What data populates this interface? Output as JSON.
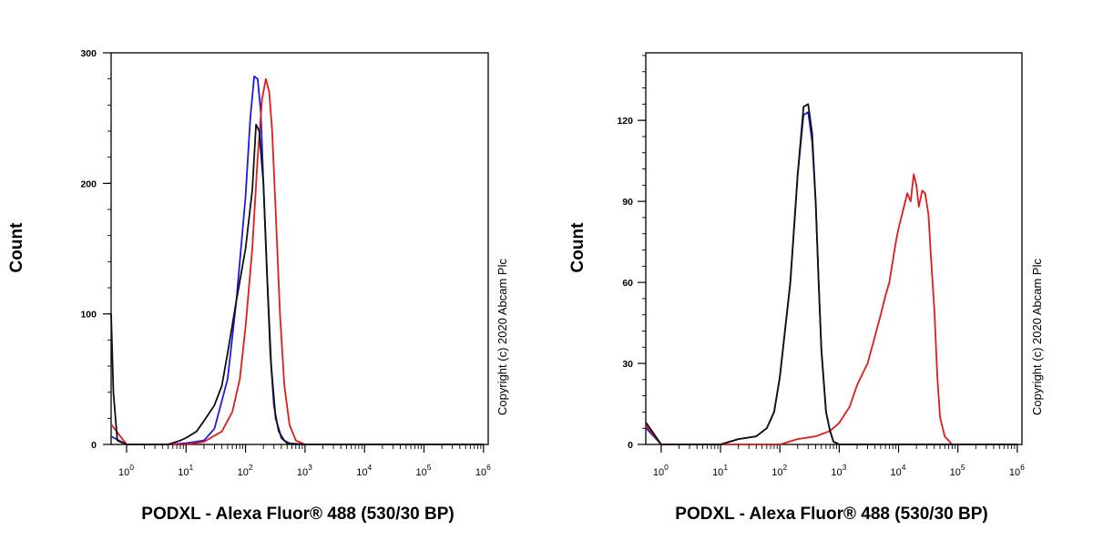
{
  "chart_data": [
    {
      "type": "line",
      "xlabel": "PODXL - Alexa Fluor® 488 (530/30 BP)",
      "ylabel": "Count",
      "x_scale": "log",
      "xlim": [
        0.55,
        1200000
      ],
      "ylim": [
        0,
        300
      ],
      "x_ticks": [
        {
          "value": 1,
          "base": "10",
          "exp": "0"
        },
        {
          "value": 10,
          "base": "10",
          "exp": "1"
        },
        {
          "value": 100,
          "base": "10",
          "exp": "2"
        },
        {
          "value": 1000,
          "base": "10",
          "exp": "3"
        },
        {
          "value": 10000,
          "base": "10",
          "exp": "4"
        },
        {
          "value": 100000,
          "base": "10",
          "exp": "5"
        },
        {
          "value": 1000000,
          "base": "10",
          "exp": "6"
        }
      ],
      "y_ticks": [
        0,
        100,
        200,
        300
      ],
      "y_minor_step": 20,
      "copyright": "Copyright (c) 2020 Abcam Plc",
      "series": [
        {
          "color": "#1a1ae6",
          "x": [
            0.56,
            1,
            5,
            10,
            20,
            30,
            50,
            70,
            100,
            120,
            140,
            160,
            180,
            200,
            230,
            260,
            300,
            360,
            450,
            600,
            1000,
            1000000
          ],
          "y": [
            6,
            0,
            0,
            1,
            3,
            12,
            50,
            110,
            190,
            250,
            282,
            280,
            255,
            200,
            130,
            70,
            30,
            10,
            3,
            0,
            0,
            0
          ]
        },
        {
          "color": "#e61a1a",
          "x": [
            0.56,
            1,
            5,
            10,
            20,
            40,
            60,
            80,
            100,
            130,
            160,
            190,
            220,
            250,
            280,
            320,
            380,
            450,
            550,
            700,
            1000,
            1000000
          ],
          "y": [
            15,
            0,
            0,
            0,
            2,
            10,
            25,
            50,
            90,
            150,
            220,
            265,
            280,
            270,
            240,
            180,
            100,
            45,
            15,
            3,
            0,
            0
          ]
        },
        {
          "color": "#111111",
          "x": [
            0.55,
            0.6,
            0.7,
            1,
            5,
            8,
            10,
            15,
            20,
            30,
            40,
            50,
            70,
            100,
            130,
            150,
            170,
            200,
            230,
            270,
            320,
            400,
            500,
            1000,
            1000000
          ],
          "y": [
            100,
            40,
            3,
            0,
            0,
            3,
            5,
            10,
            18,
            30,
            45,
            70,
            110,
            150,
            195,
            245,
            240,
            200,
            130,
            60,
            20,
            5,
            1,
            0,
            0
          ]
        }
      ]
    },
    {
      "type": "line",
      "xlabel": "PODXL - Alexa Fluor® 488 (530/30 BP)",
      "ylabel": "Count",
      "x_scale": "log",
      "xlim": [
        0.55,
        1200000
      ],
      "ylim": [
        0,
        145
      ],
      "x_ticks": [
        {
          "value": 1,
          "base": "10",
          "exp": "0"
        },
        {
          "value": 10,
          "base": "10",
          "exp": "1"
        },
        {
          "value": 100,
          "base": "10",
          "exp": "2"
        },
        {
          "value": 1000,
          "base": "10",
          "exp": "3"
        },
        {
          "value": 10000,
          "base": "10",
          "exp": "4"
        },
        {
          "value": 100000,
          "base": "10",
          "exp": "5"
        },
        {
          "value": 1000000,
          "base": "10",
          "exp": "6"
        }
      ],
      "y_ticks": [
        0,
        30,
        60,
        90,
        120
      ],
      "y_minor_step": 6,
      "copyright": "Copyright (c) 2020 Abcam Plc",
      "series": [
        {
          "color": "#1a1ae6",
          "x": [
            0.56,
            1,
            5,
            10,
            20,
            40,
            60,
            80,
            100,
            150,
            200,
            250,
            300,
            350,
            400,
            450,
            500,
            600,
            700,
            800,
            1000,
            1000000
          ],
          "y": [
            6,
            0,
            0,
            0,
            2,
            3,
            6,
            12,
            25,
            60,
            100,
            122,
            123,
            112,
            90,
            60,
            35,
            12,
            5,
            1,
            0,
            0
          ]
        },
        {
          "color": "#e61a1a",
          "x": [
            0.56,
            1,
            100,
            200,
            400,
            700,
            1000,
            1500,
            2000,
            3000,
            4000,
            5000,
            6000,
            7000,
            8000,
            9000,
            10000,
            12000,
            14000,
            16000,
            18000,
            20000,
            22000,
            25000,
            28000,
            32000,
            35000,
            40000,
            45000,
            50000,
            60000,
            80000,
            1000000
          ],
          "y": [
            7,
            0,
            0,
            2,
            3,
            5,
            8,
            14,
            22,
            30,
            40,
            48,
            55,
            60,
            68,
            75,
            80,
            87,
            93,
            90,
            100,
            96,
            88,
            94,
            93,
            85,
            70,
            50,
            25,
            10,
            3,
            0,
            0
          ]
        },
        {
          "color": "#111111",
          "x": [
            0.56,
            1,
            5,
            10,
            20,
            40,
            60,
            80,
            100,
            150,
            200,
            250,
            300,
            350,
            400,
            450,
            500,
            600,
            700,
            800,
            1000,
            1000000
          ],
          "y": [
            8,
            0,
            0,
            0,
            2,
            3,
            6,
            12,
            25,
            60,
            100,
            125,
            126,
            115,
            90,
            60,
            35,
            12,
            5,
            1,
            0,
            0
          ]
        }
      ]
    }
  ]
}
